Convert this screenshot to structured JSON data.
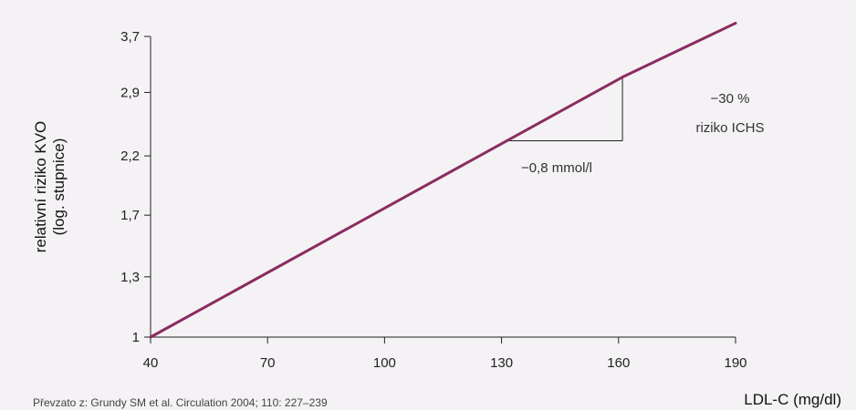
{
  "chart_data": {
    "type": "line",
    "xlabel": "LDL-C (mg/dl)",
    "ylabel_line1": "relativní riziko KVO",
    "ylabel_line2": "(log. stupnice)",
    "x_ticks": [
      40,
      70,
      100,
      130,
      160,
      190
    ],
    "y_ticks": [
      "1",
      "1,3",
      "1,7",
      "2,2",
      "2,9",
      "3,7"
    ],
    "y_tick_values": [
      1,
      1.3,
      1.7,
      2.2,
      2.9,
      3.7
    ],
    "y_scale": "log",
    "xlim": [
      40,
      190
    ],
    "ylim": [
      1,
      3.7
    ],
    "grid": false,
    "series": [
      {
        "x": [
          40,
          161,
          190
        ],
        "y": [
          1,
          3.1,
          3.92
        ],
        "color": "#8b2c5f"
      }
    ],
    "annotations": {
      "reduction_label": "−0,8 mmol/l",
      "risk_line1": "−30 %",
      "risk_line2": "riziko ICHS",
      "triangle": {
        "x_from": 131,
        "x_to": 161,
        "y_low": 2.35,
        "y_high": 3.1
      }
    },
    "source": "Převzato z: Grundy SM et al. Circulation 2004; 110: 227–239"
  }
}
